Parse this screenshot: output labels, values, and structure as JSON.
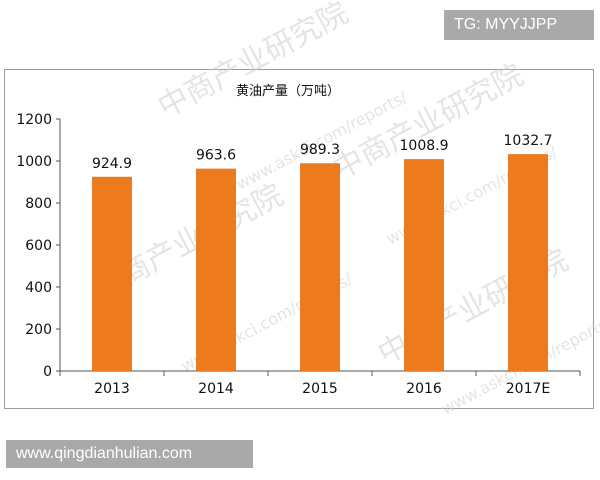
{
  "top_badge": "TG: MYYJJPP",
  "bottom_badge": "www.qingdianhulian.com",
  "watermarks": [
    "中商产业研究院",
    "www.askci.com/reports/",
    "中商产业研究院",
    "www.askci.com/reports/",
    "中商产业研究院",
    "www.askci.com/reports/"
  ],
  "colors": {
    "bar": "#ee7a1e",
    "axis": "#555555",
    "frame": "#9c9c9c"
  },
  "chart_data": {
    "type": "bar",
    "title": "",
    "xlabel": "",
    "ylabel": "",
    "categories": [
      "2013",
      "2014",
      "2015",
      "2016",
      "2017E"
    ],
    "series": [
      {
        "name": "黄油产量（万吨）",
        "values": [
          924.9,
          963.6,
          989.3,
          1008.9,
          1032.7
        ]
      }
    ],
    "data_labels": [
      "924.9",
      "963.6",
      "989.3",
      "1008.9",
      "1032.7"
    ],
    "yticks": [
      0,
      200,
      400,
      600,
      800,
      1000,
      1200
    ],
    "ylim": [
      0,
      1200
    ],
    "grid": false,
    "legend": "top-left"
  }
}
